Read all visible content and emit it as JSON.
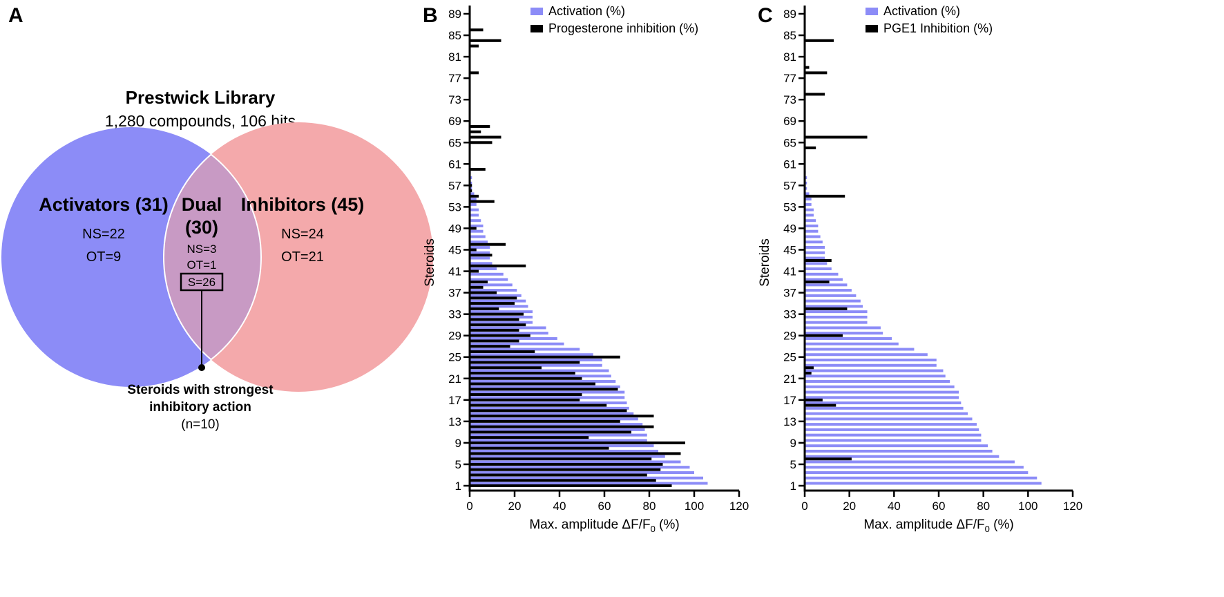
{
  "panel_a": {
    "letter": "A",
    "title": "Prestwick Library",
    "subtitle": "1,280 compounds, 106 hits",
    "activators": {
      "label": "Activators (31)",
      "ns": "NS=22",
      "ot": "OT=9",
      "color": "#8c8cf7"
    },
    "dual": {
      "label1": "Dual",
      "label2": "(30)",
      "ns": "NS=3",
      "ot": "OT=1",
      "s": "S=26",
      "color": "#c89ac4"
    },
    "inhibitors": {
      "label": "Inhibitors (45)",
      "ns": "NS=24",
      "ot": "OT=21",
      "color": "#f4a9ab"
    },
    "callout1": "Steroids with strongest",
    "callout2": "inhibitory action",
    "callout3": "(n=10)"
  },
  "chart_data": [
    {
      "panel": "B",
      "type": "bar",
      "orientation": "horizontal",
      "ylabel": "Steroids",
      "xlabel": [
        "Max. amplitude ΔF/F",
        "0",
        " (%)"
      ],
      "xlim": [
        0,
        120
      ],
      "xticks": [
        0,
        20,
        40,
        60,
        80,
        100,
        120
      ],
      "yticks": [
        1,
        5,
        9,
        13,
        17,
        21,
        25,
        29,
        33,
        37,
        41,
        45,
        49,
        53,
        57,
        61,
        65,
        69,
        73,
        77,
        81,
        85,
        89
      ],
      "legend": "top-right",
      "series": [
        {
          "name": "Activation (%)",
          "color": "#8c8cf7",
          "values": [
            106,
            104,
            100,
            98,
            94,
            87,
            84,
            82,
            79,
            79,
            78,
            77,
            75,
            73,
            71,
            70,
            69,
            69,
            67,
            65,
            63,
            62,
            59,
            59,
            55,
            49,
            42,
            39,
            35,
            34,
            28,
            28,
            28,
            26,
            25,
            23,
            21,
            19,
            17,
            15,
            12,
            10,
            9,
            9,
            9,
            8,
            7,
            6,
            6,
            5,
            4,
            4,
            3,
            3,
            2,
            1,
            1,
            1,
            0.5,
            0,
            0,
            0,
            0,
            0,
            0,
            0,
            0,
            0,
            0,
            0,
            0,
            0,
            0,
            0,
            0,
            0,
            0,
            0,
            0,
            0,
            0,
            0,
            0,
            0,
            0,
            0,
            0,
            0,
            0
          ]
        },
        {
          "name": "Progesterone inhibition (%)",
          "color": "#000000",
          "values": [
            90,
            83,
            79,
            85,
            86,
            81,
            94,
            62,
            96,
            53,
            72,
            82,
            67,
            82,
            70,
            61,
            49,
            50,
            66,
            56,
            50,
            47,
            32,
            49,
            67,
            29,
            18,
            22,
            27,
            22,
            25,
            22,
            24,
            13,
            20,
            21,
            12,
            6,
            8,
            0,
            4,
            25,
            0,
            10,
            3,
            16,
            0,
            0,
            3,
            0,
            0,
            0,
            0,
            11,
            4,
            1,
            1,
            0,
            0,
            7,
            0,
            0,
            0,
            0,
            10,
            14,
            5,
            9,
            0,
            0,
            0,
            0,
            0,
            0,
            0,
            0,
            0,
            4,
            0,
            0,
            0,
            0,
            4,
            14,
            0,
            6,
            0,
            0,
            0
          ]
        }
      ]
    },
    {
      "panel": "C",
      "type": "bar",
      "orientation": "horizontal",
      "ylabel": "Steroids",
      "xlabel": [
        "Max. amplitude ΔF/F",
        "0",
        " (%)"
      ],
      "xlim": [
        0,
        120
      ],
      "xticks": [
        0,
        20,
        40,
        60,
        80,
        100,
        120
      ],
      "yticks": [
        1,
        5,
        9,
        13,
        17,
        21,
        25,
        29,
        33,
        37,
        41,
        45,
        49,
        53,
        57,
        61,
        65,
        69,
        73,
        77,
        81,
        85,
        89
      ],
      "legend": "top-right",
      "series": [
        {
          "name": "Activation (%)",
          "color": "#8c8cf7",
          "values": [
            106,
            104,
            100,
            98,
            94,
            87,
            84,
            82,
            79,
            79,
            78,
            77,
            75,
            73,
            71,
            70,
            69,
            69,
            67,
            65,
            63,
            62,
            59,
            59,
            55,
            49,
            42,
            39,
            35,
            34,
            28,
            28,
            28,
            26,
            25,
            23,
            21,
            19,
            17,
            15,
            12,
            10,
            9,
            9,
            9,
            8,
            7,
            6,
            6,
            5,
            4,
            4,
            3,
            3,
            2,
            1,
            1,
            1,
            0.5,
            0,
            0,
            0,
            0,
            0,
            0,
            0,
            0,
            0,
            0,
            0,
            0,
            0,
            0,
            0,
            0,
            0,
            0,
            0,
            0,
            0,
            0,
            0,
            0,
            0,
            0,
            0,
            0,
            0,
            0
          ]
        },
        {
          "name": "PGE1 Inhibition (%)",
          "color": "#000000",
          "values": [
            0,
            0,
            0,
            0,
            0,
            21,
            0,
            0,
            0,
            0,
            0,
            0,
            0,
            0,
            0,
            14,
            8,
            0,
            0,
            0,
            0,
            3,
            4,
            0,
            0,
            0,
            0,
            0,
            17,
            0,
            0,
            0,
            0,
            19,
            0,
            0,
            0,
            0,
            11,
            0,
            0,
            0,
            12,
            0,
            0,
            0,
            0,
            0,
            0,
            0,
            0,
            0,
            0,
            0,
            18,
            0,
            0,
            0,
            0,
            0,
            0,
            0,
            0,
            5,
            0,
            28,
            0,
            0,
            0,
            0,
            0,
            0,
            0,
            9,
            0,
            0,
            0,
            10,
            2,
            0,
            0,
            0,
            0,
            13,
            0,
            0,
            0,
            0,
            0
          ]
        }
      ]
    }
  ]
}
